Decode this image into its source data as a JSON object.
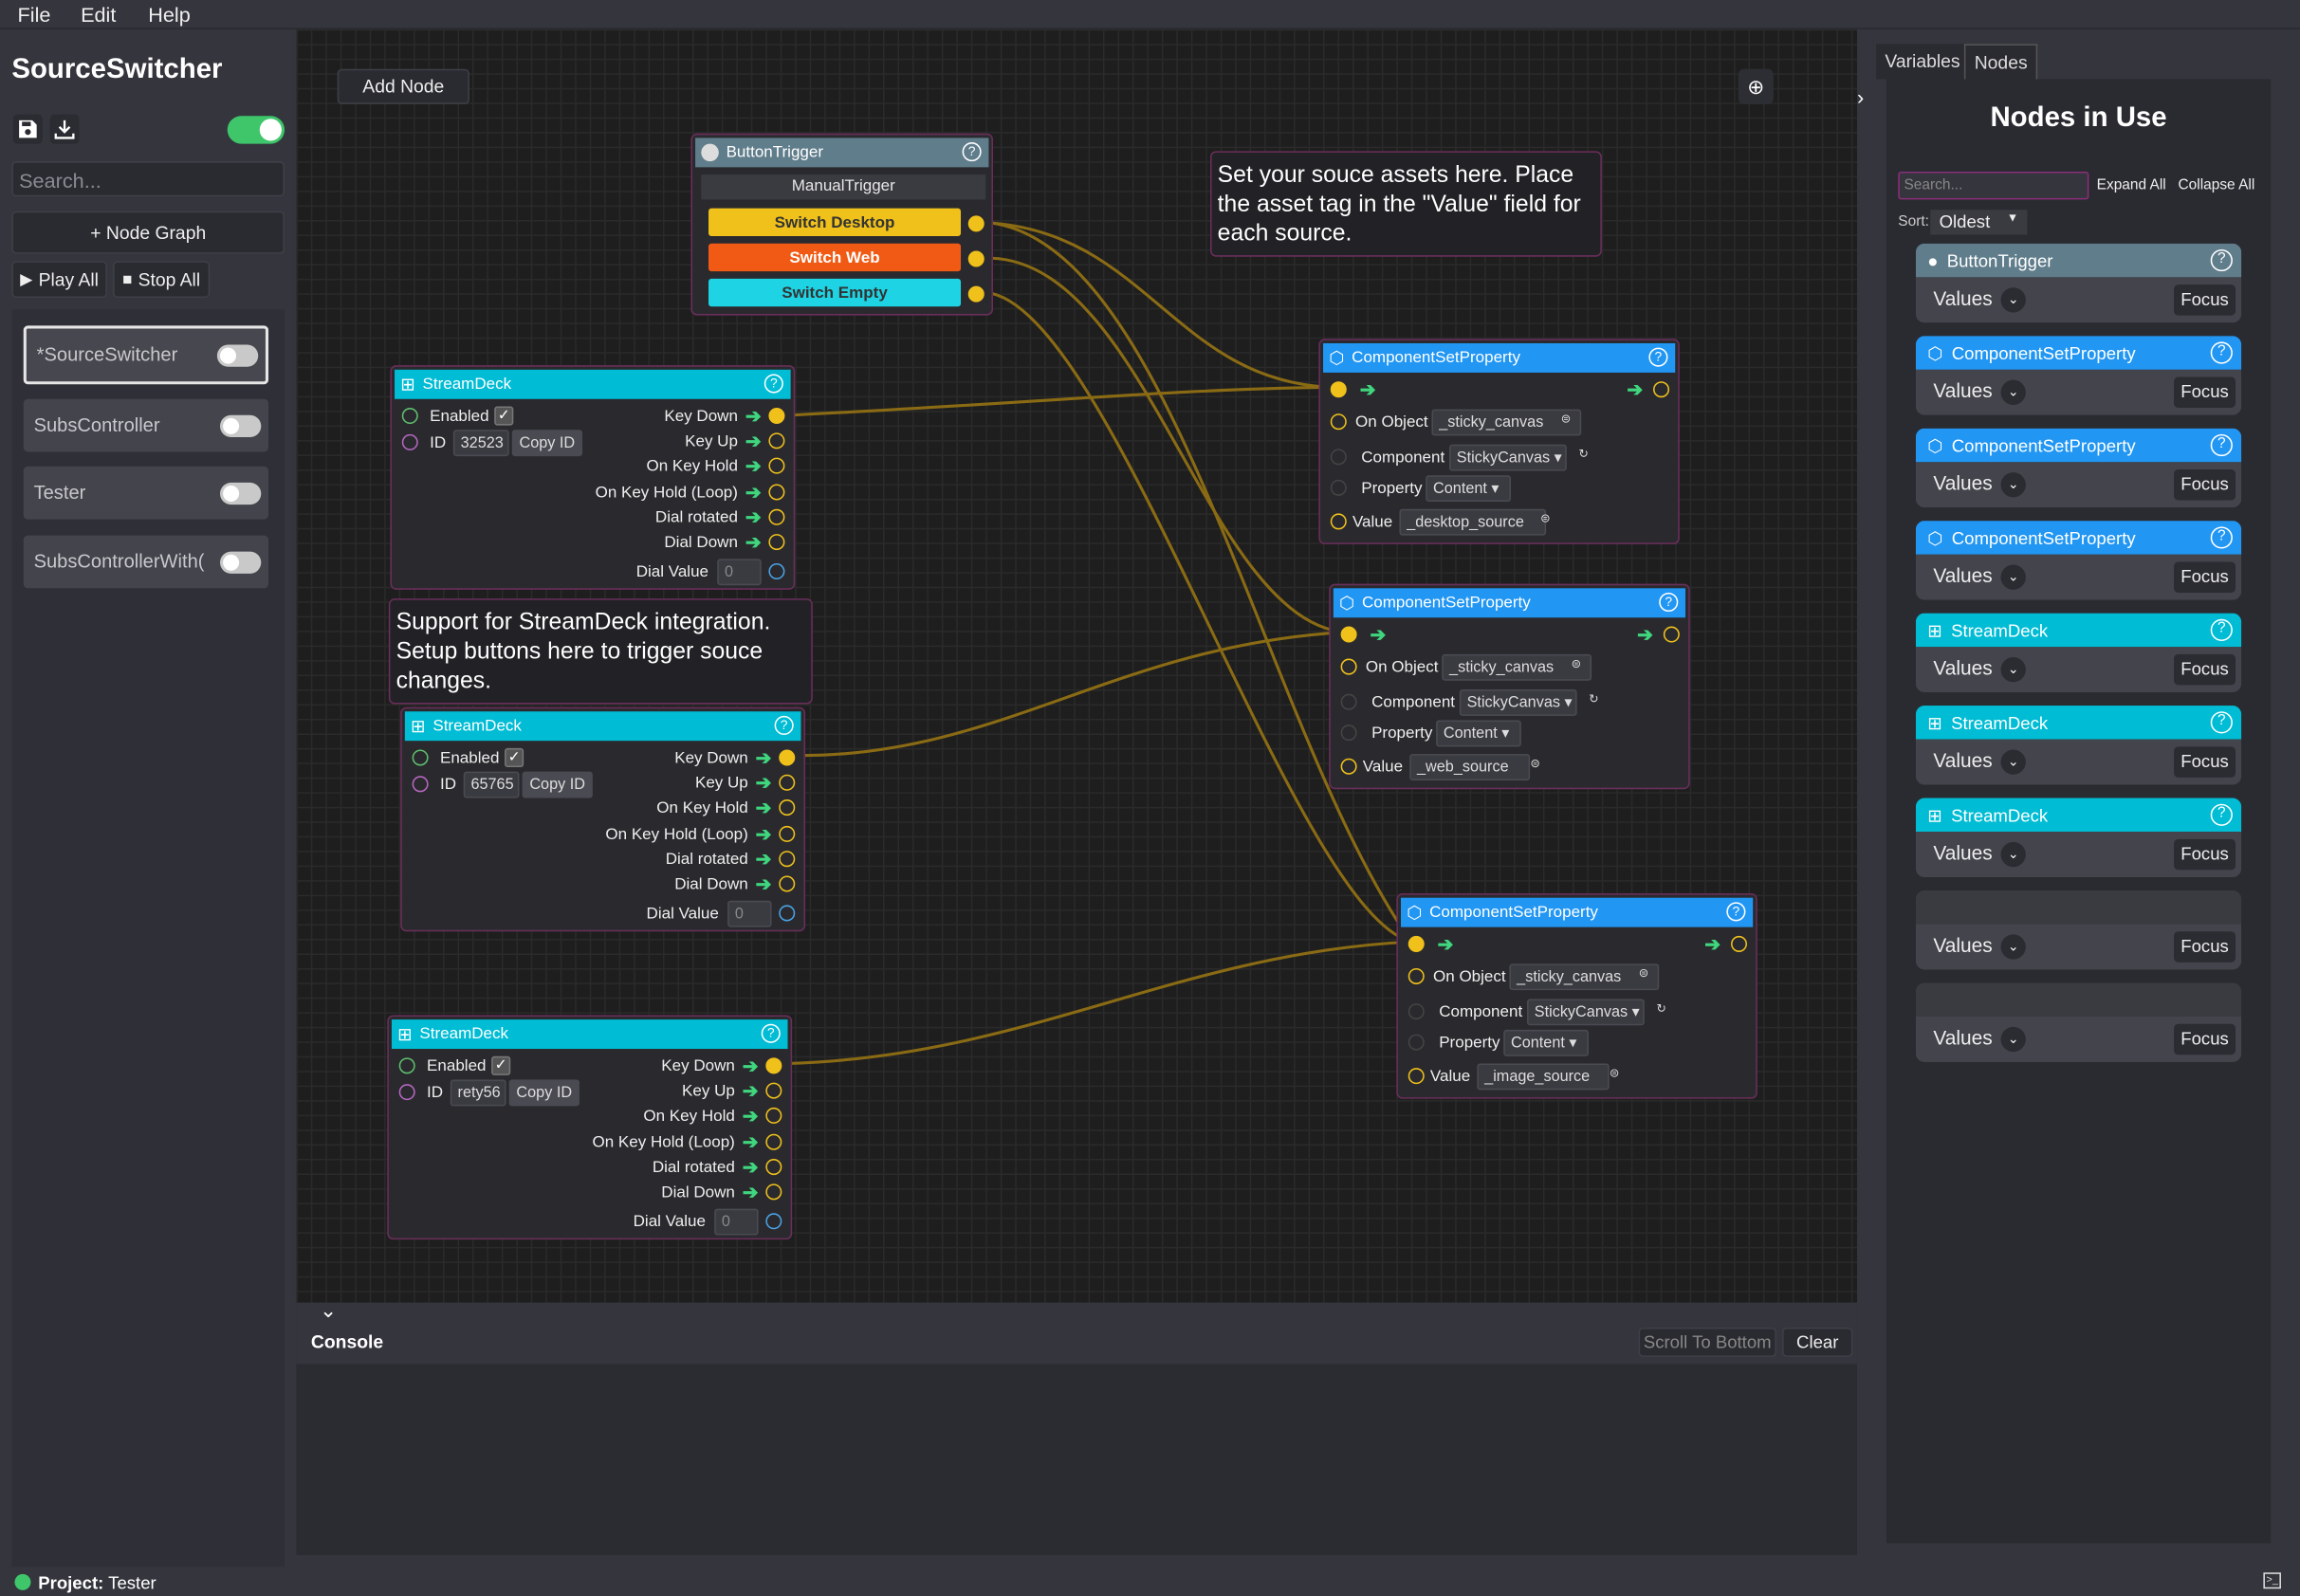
{
  "menu": {
    "file": "File",
    "edit": "Edit",
    "help": "Help"
  },
  "sidebar": {
    "title": "SourceSwitcher",
    "search_placeholder": "Search...",
    "add_graph": "+ Node Graph",
    "play_all": "Play All",
    "stop_all": "Stop All",
    "graphs": [
      {
        "label": "*SourceSwitcher"
      },
      {
        "label": "SubsController"
      },
      {
        "label": "Tester"
      },
      {
        "label": "SubsControllerWith("
      }
    ]
  },
  "canvas": {
    "add_node": "Add Node",
    "button_trigger": {
      "title": "ButtonTrigger",
      "manual": "ManualTrigger",
      "buttons": [
        {
          "label": "Switch Desktop",
          "color": "#f0c11b"
        },
        {
          "label": "Switch Web",
          "color": "#f15a14"
        },
        {
          "label": "Switch Empty",
          "color": "#1ed4e4"
        }
      ]
    },
    "note1": "Set your souce assets here. Place the asset tag in the \"Value\" field for each source.",
    "note2": "Support for StreamDeck integration. Setup buttons here to trigger souce changes.",
    "streamdeck": {
      "title": "StreamDeck",
      "enabled": "Enabled",
      "id_label": "ID",
      "copy_id": "Copy ID",
      "outputs": [
        "Key Down",
        "Key Up",
        "On Key Hold",
        "On Key Hold (Loop)",
        "Dial rotated",
        "Dial Down"
      ],
      "dial_value": "Dial Value",
      "dial_val": "0",
      "ids": [
        "32523",
        "65765",
        "rety56"
      ]
    },
    "csp": {
      "title": "ComponentSetProperty",
      "on_object": "On Object",
      "component": "Component",
      "property": "Property",
      "value": "Value",
      "obj_val": "_sticky_canvas",
      "comp_val": "StickyCanvas",
      "prop_val": "Content",
      "values": [
        "_desktop_source",
        "_web_source",
        "_image_source"
      ]
    }
  },
  "console": {
    "title": "Console",
    "scroll": "Scroll To Bottom",
    "clear": "Clear"
  },
  "right": {
    "tab_variables": "Variables",
    "tab_nodes": "Nodes",
    "heading": "Nodes in Use",
    "search_placeholder": "Search...",
    "expand": "Expand All",
    "collapse": "Collapse All",
    "sort_label": "Sort:",
    "sort_value": "Oldest",
    "cards": [
      {
        "title": "ButtonTrigger",
        "color": "#607d8b"
      },
      {
        "title": "ComponentSetProperty",
        "color": "#2196f3"
      },
      {
        "title": "ComponentSetProperty",
        "color": "#2196f3"
      },
      {
        "title": "ComponentSetProperty",
        "color": "#2196f3"
      },
      {
        "title": "StreamDeck",
        "color": "#00bcd4"
      },
      {
        "title": "StreamDeck",
        "color": "#00bcd4"
      },
      {
        "title": "StreamDeck",
        "color": "#00bcd4"
      },
      {
        "title": "",
        "color": "#3a3b41"
      },
      {
        "title": "",
        "color": "#3a3b41"
      }
    ],
    "values": "Values",
    "focus": "Focus"
  },
  "status": {
    "project_label": "Project:",
    "project_name": "Tester"
  }
}
